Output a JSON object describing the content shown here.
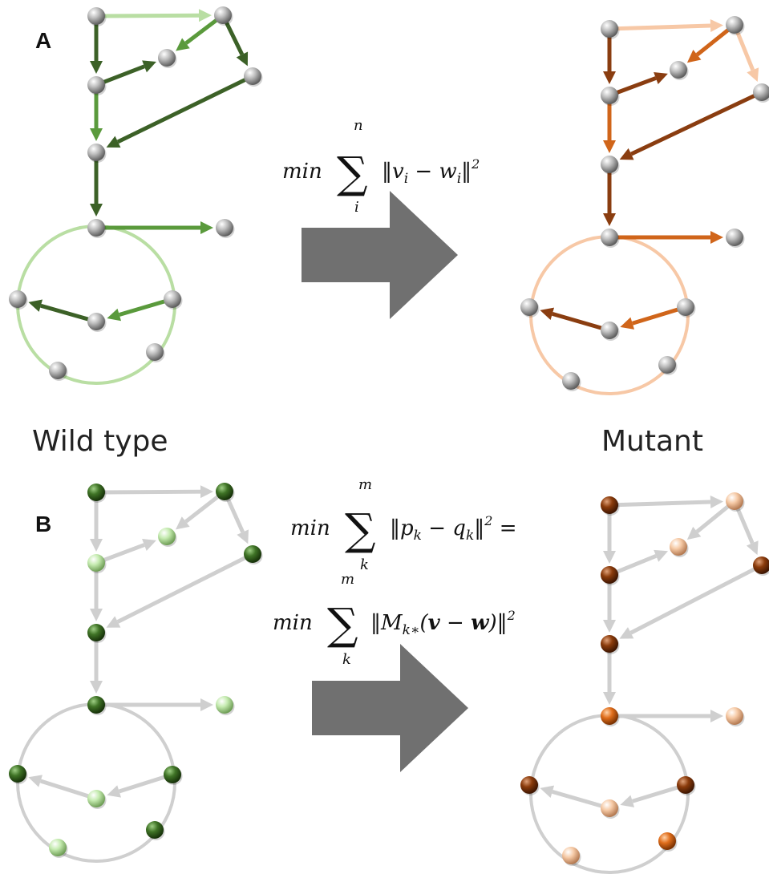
{
  "labels": {
    "panel_a": "A",
    "panel_b": "B",
    "wild_type": "Wild type",
    "mutant": "Mutant"
  },
  "equations": {
    "eq_a": {
      "min": "min",
      "upper": "n",
      "lower": "i",
      "body": "‖v",
      "sub1": "i",
      "minus": " − w",
      "sub2": "i",
      "close": "‖",
      "power": "2"
    },
    "eq_b1": {
      "min": "min",
      "upper": "m",
      "lower": "k",
      "body": "‖p",
      "sub1": "k",
      "minus": " − q",
      "sub2": "k",
      "close": "‖",
      "power": "2",
      "tail": " ="
    },
    "eq_b2": {
      "min": "min",
      "upper": "m",
      "lower": "k",
      "body": "‖M",
      "sub1": "k∗",
      "open": "(",
      "v": "v",
      "minus": " − ",
      "w": "w",
      "close": ")‖",
      "power": "2"
    }
  },
  "colors": {
    "node_gray": "#b8b8b8",
    "green_dark": "#3c6127",
    "green_mid": "#5a9a3c",
    "green_light": "#b9dea3",
    "orange_dark": "#8a3d10",
    "orange_mid": "#d0651a",
    "orange_light": "#f7c8a6",
    "edge_gray": "#cfcfcf",
    "big_arrow": "#707070",
    "node_b_dark_green": "#2f5d1c",
    "node_b_light_green": "#b8e3a0",
    "node_b_dark_orange": "#7c3406",
    "node_b_mid_orange": "#d06a1e",
    "node_b_light_orange": "#f2c29c"
  }
}
